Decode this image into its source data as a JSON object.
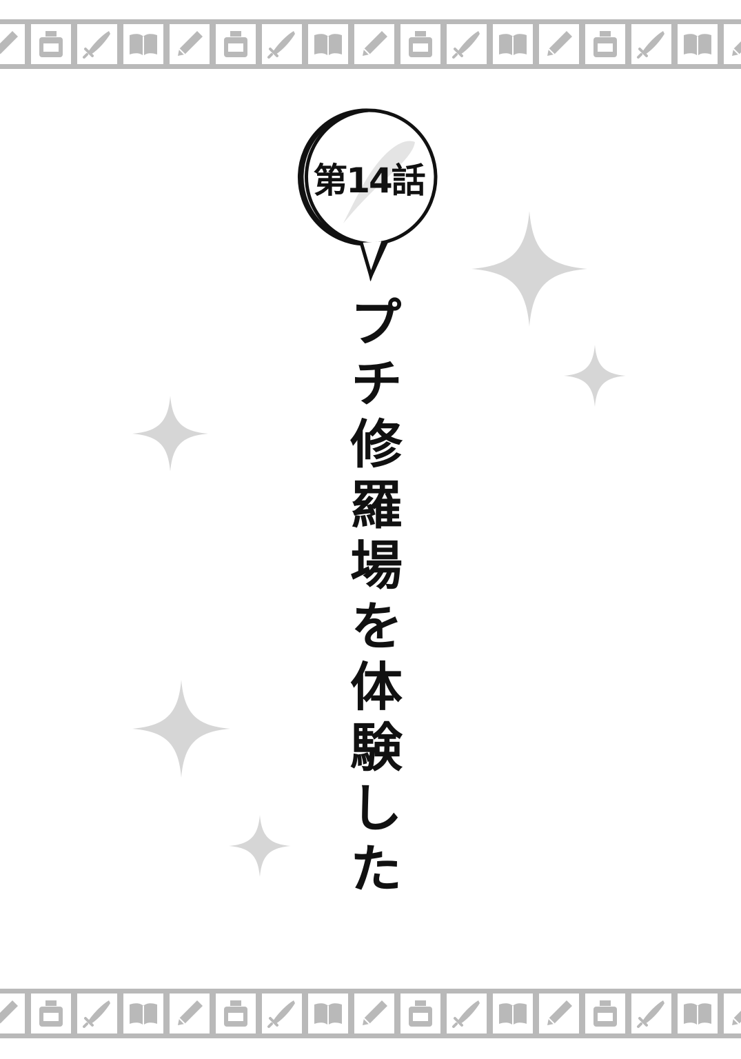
{
  "chapter": {
    "label": "第14話"
  },
  "title": {
    "text": "プチ修羅場を体験した"
  },
  "border": {
    "color": "#b9b9b9",
    "tile_color": "#ffffff",
    "icon_color": "#b9b9b9",
    "icons": [
      "pencil-icon",
      "ink-bottle-icon",
      "sword-icon",
      "book-icon",
      "pencil-icon",
      "ink-bottle-icon",
      "sword-icon",
      "book-icon",
      "pencil-icon",
      "ink-bottle-icon",
      "sword-icon",
      "book-icon",
      "pencil-icon",
      "ink-bottle-icon",
      "sword-icon",
      "book-icon",
      "pencil-icon"
    ]
  },
  "sparkle_color": "#d6d6d6"
}
